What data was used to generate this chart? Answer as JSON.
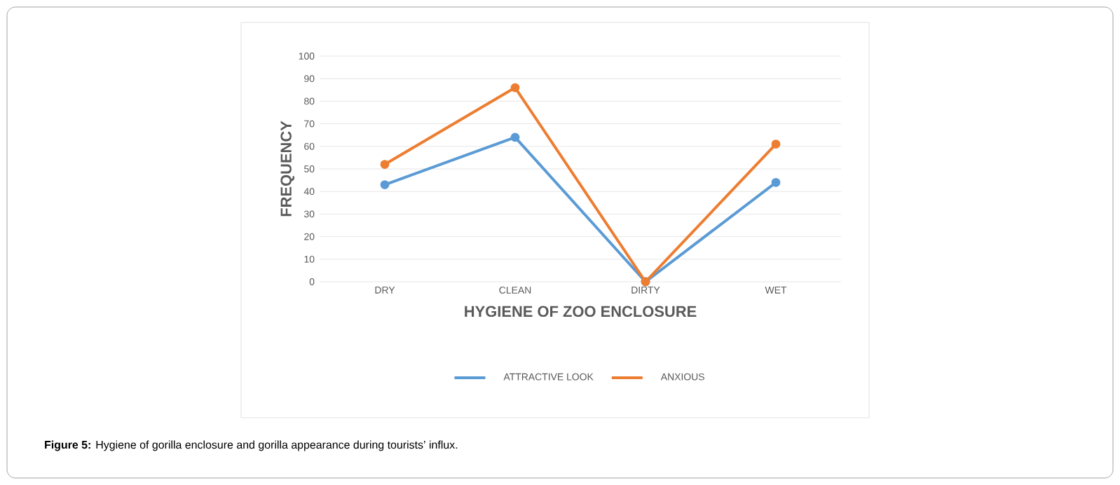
{
  "chart_data": {
    "type": "line",
    "categories": [
      "DRY",
      "CLEAN",
      "DIRTY",
      "WET"
    ],
    "series": [
      {
        "name": "ATTRACTIVE LOOK",
        "color": "#5b9bd5",
        "values": [
          43,
          64,
          0,
          44
        ]
      },
      {
        "name": "ANXIOUS",
        "color": "#ed7d31",
        "values": [
          52,
          86,
          0,
          61
        ]
      }
    ],
    "xlabel": "HYGIENE OF ZOO ENCLOSURE",
    "ylabel": "FREQUENCY",
    "ylim": [
      0,
      100
    ],
    "yticks": [
      0,
      10,
      20,
      30,
      40,
      50,
      60,
      70,
      80,
      90,
      100
    ],
    "grid": "y",
    "legend": "bottom",
    "marker": "circle",
    "line_style": "solid",
    "annotations": [
      "**Figure 5:** Hygiene of gorilla enclosure and gorilla appearance during tourists’ influx."
    ]
  }
}
